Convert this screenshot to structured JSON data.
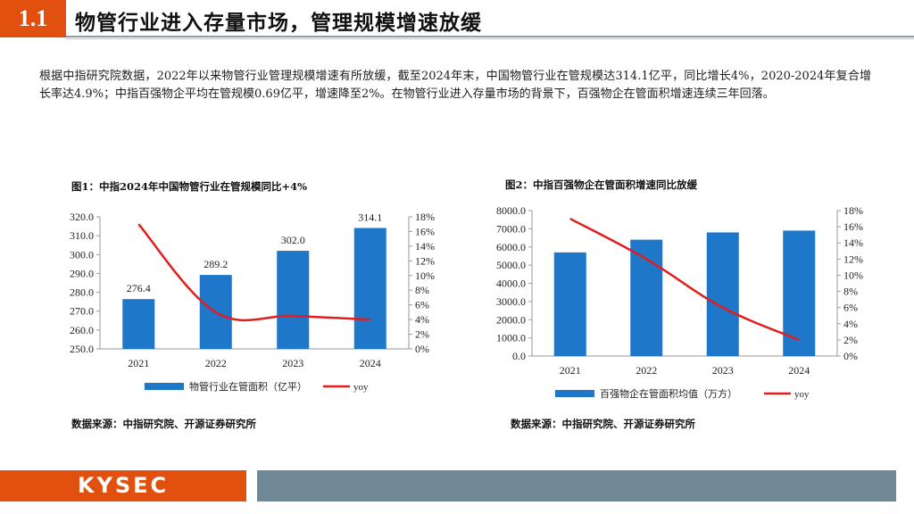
{
  "section": {
    "number": "1.1",
    "title": "物管行业进入存量市场，管理规模增速放缓"
  },
  "body": {
    "paragraph": "根据中指研究院数据，2022年以来物管行业管理规模增速有所放缓，截至2024年末，中国物管行业在管规模达314.1亿平，同比增长4%，2020-2024年复合增长率达4.9%；中指百强物企平均在管规模0.69亿平，增速降至2%。在物管行业进入存量市场的背景下，百强物企在管面积增速连续三年回落。"
  },
  "figure1": {
    "title": "图1：中指2024年中国物管行业在管规模同比+4%",
    "source": "数据来源：中指研究院、开源证券研究所"
  },
  "figure2": {
    "title": "图2：中指百强物企在管面积增速同比放缓",
    "source": "数据来源：中指研究院、开源证券研究所"
  },
  "colors": {
    "bar": "#1f77c9",
    "line": "#e11d1d",
    "accent": "#e2500f",
    "footer_gray": "#6f8996"
  },
  "chart_data": [
    {
      "type": "bar",
      "categories": [
        "2021",
        "2022",
        "2023",
        "2024"
      ],
      "series": [
        {
          "name": "物管行业在管面积（亿平）",
          "axis": "left",
          "kind": "bar",
          "values": [
            276.4,
            289.2,
            302.0,
            314.1
          ],
          "labels": [
            "276.4",
            "289.2",
            "302.0",
            "314.1"
          ]
        },
        {
          "name": "yoy",
          "axis": "right",
          "kind": "line",
          "values": [
            17.0,
            5.0,
            4.5,
            4.0
          ]
        }
      ],
      "ylim_left": [
        250,
        320
      ],
      "yticks_left": [
        "250.0",
        "260.0",
        "270.0",
        "280.0",
        "290.0",
        "300.0",
        "310.0",
        "320.0"
      ],
      "ylim_right": [
        0,
        18
      ],
      "yticks_right": [
        "0%",
        "2%",
        "4%",
        "6%",
        "8%",
        "10%",
        "12%",
        "14%",
        "16%",
        "18%"
      ],
      "legend": [
        "物管行业在管面积（亿平）",
        "yoy"
      ],
      "legend_position": "bottom"
    },
    {
      "type": "bar",
      "categories": [
        "2021",
        "2022",
        "2023",
        "2024"
      ],
      "series": [
        {
          "name": "百强物企在管面积均值（万方）",
          "axis": "left",
          "kind": "bar",
          "values": [
            5700,
            6400,
            6800,
            6900
          ]
        },
        {
          "name": "yoy",
          "axis": "right",
          "kind": "line",
          "values": [
            17.0,
            12.0,
            6.0,
            2.0
          ]
        }
      ],
      "ylim_left": [
        0,
        8000
      ],
      "yticks_left": [
        "0.0",
        "1000.0",
        "2000.0",
        "3000.0",
        "4000.0",
        "5000.0",
        "6000.0",
        "7000.0",
        "8000.0"
      ],
      "ylim_right": [
        0,
        18
      ],
      "yticks_right": [
        "0%",
        "2%",
        "4%",
        "6%",
        "8%",
        "10%",
        "12%",
        "14%",
        "16%",
        "18%"
      ],
      "legend": [
        "百强物企在管面积均值（万方）",
        "yoy"
      ],
      "legend_position": "bottom"
    }
  ],
  "footer": {
    "logo_text": "KYSEC"
  }
}
